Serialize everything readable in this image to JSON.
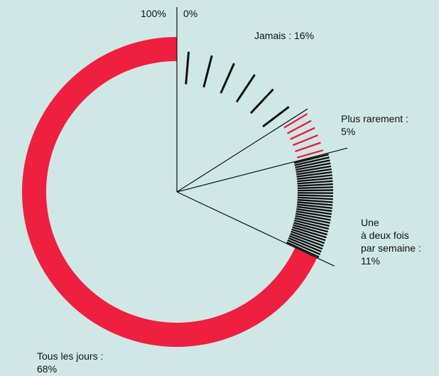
{
  "chart_data": {
    "type": "pie",
    "style": "donut",
    "colors": {
      "background": "#cfe8e6",
      "primary": "#ef1f3f",
      "ink": "#111111"
    },
    "scale_labels": {
      "end": "100%",
      "start": "0%"
    },
    "categories": [
      "Jamais",
      "Plus rarement",
      "Une\nà deux fois\npar semaine",
      "Tous les jours"
    ],
    "values": [
      16,
      5,
      11,
      68
    ],
    "value_labels": [
      "16%",
      "5%",
      "11%",
      "68%"
    ],
    "series_styles": [
      "sparse-black-hatch",
      "red-hatch",
      "dense-black-hatch",
      "solid-red"
    ],
    "labels": {
      "jamais": "Jamais : 16%",
      "plus_rarement": "Plus rarement :\n5%",
      "une_deux": "Une\nà deux fois\npar semaine :\n11%",
      "tous": "Tous les jours :\n68%"
    }
  }
}
